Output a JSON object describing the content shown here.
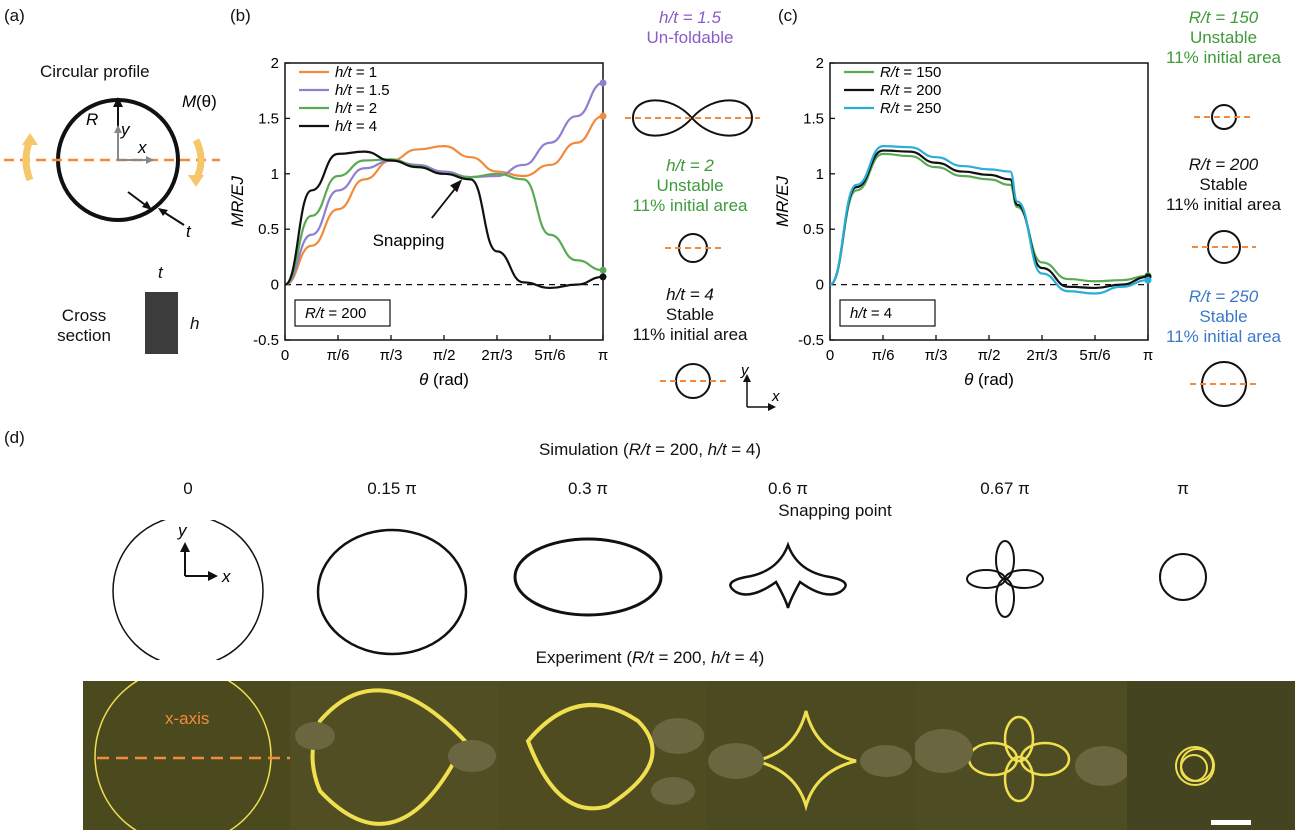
{
  "panel_labels": {
    "a": "(a)",
    "b": "(b)",
    "c": "(c)",
    "d": "(d)"
  },
  "panel_a": {
    "circular_profile": "Circular profile",
    "R": "R",
    "y": "y",
    "x": "x",
    "M": "M",
    "theta": "(θ)",
    "t": "t",
    "cross_section_line1": "Cross",
    "cross_section_line2": "section",
    "cs_t": "t",
    "cs_h": "h"
  },
  "chart_data": [
    {
      "type": "line",
      "panel": "(b)",
      "xlabel": "θ (rad)",
      "ylabel": "MR/EJ",
      "xlim": [
        0,
        3.1416
      ],
      "ylim": [
        -0.5,
        2
      ],
      "x_tick_labels": [
        "0",
        "π/6",
        "π/3",
        "π/2",
        "2π/3",
        "5π/6",
        "π"
      ],
      "y_tick_labels": [
        "-0.5",
        "0",
        "0.5",
        "1",
        "1.5",
        "2"
      ],
      "legend_position": "top-left",
      "inset_label": "R/t = 200",
      "annotation": "Snapping",
      "x": [
        0,
        0.2618,
        0.5236,
        0.7854,
        1.0472,
        1.309,
        1.5708,
        1.8326,
        2.0944,
        2.3562,
        2.618,
        2.8798,
        3.1416
      ],
      "series": [
        {
          "name": "h/t = 1",
          "color": "#f28a3c",
          "values": [
            0,
            0.35,
            0.68,
            0.95,
            1.12,
            1.22,
            1.25,
            1.15,
            1.02,
            0.98,
            1.08,
            1.28,
            1.52
          ]
        },
        {
          "name": "h/t = 1.5",
          "color": "#8f7fd1",
          "values": [
            0,
            0.45,
            0.85,
            1.05,
            1.12,
            1.08,
            1.02,
            0.97,
            0.98,
            1.08,
            1.28,
            1.52,
            1.82
          ]
        },
        {
          "name": "h/t = 2",
          "color": "#5aaa55",
          "values": [
            0,
            0.62,
            0.98,
            1.12,
            1.13,
            1.07,
            1.0,
            0.97,
            1.0,
            0.95,
            0.45,
            0.22,
            0.13
          ]
        },
        {
          "name": "h/t = 4",
          "color": "#111111",
          "values": [
            0,
            0.85,
            1.18,
            1.2,
            1.12,
            1.06,
            1.0,
            0.95,
            0.3,
            0.02,
            -0.03,
            0.0,
            0.07
          ]
        }
      ]
    },
    {
      "type": "line",
      "panel": "(c)",
      "xlabel": "θ (rad)",
      "ylabel": "MR/EJ",
      "xlim": [
        0,
        3.1416
      ],
      "ylim": [
        -0.5,
        2
      ],
      "x_tick_labels": [
        "0",
        "π/6",
        "π/3",
        "π/2",
        "2π/3",
        "5π/6",
        "π"
      ],
      "y_tick_labels": [
        "-0.5",
        "0",
        "0.5",
        "1",
        "1.5",
        "2"
      ],
      "legend_position": "top-left",
      "inset_label": "h/t = 4",
      "x": [
        0,
        0.2618,
        0.5236,
        0.7854,
        1.0472,
        1.309,
        1.5708,
        1.7802,
        1.85,
        2.0944,
        2.3562,
        2.618,
        2.8798,
        3.1416
      ],
      "series": [
        {
          "name": "R/t = 150",
          "color": "#5aaa55",
          "values": [
            0,
            0.85,
            1.18,
            1.16,
            1.06,
            0.98,
            0.95,
            0.9,
            0.7,
            0.2,
            0.05,
            0.03,
            0.04,
            0.08
          ]
        },
        {
          "name": "R/t = 200",
          "color": "#111111",
          "values": [
            0,
            0.88,
            1.21,
            1.2,
            1.1,
            1.02,
            0.99,
            0.95,
            0.72,
            0.15,
            -0.02,
            -0.03,
            0.0,
            0.07
          ]
        },
        {
          "name": "R/t = 250",
          "color": "#2aaed8",
          "values": [
            0,
            0.9,
            1.25,
            1.24,
            1.15,
            1.07,
            1.04,
            1.02,
            0.75,
            0.1,
            -0.06,
            -0.08,
            -0.02,
            0.04
          ]
        }
      ]
    }
  ],
  "panel_b_right": {
    "t1_line1": "h/t = 1.5",
    "t1_line2": "Un-foldable",
    "t2_line1": "h/t = 2",
    "t2_line2": "Unstable",
    "t2_line3": "11% initial area",
    "t3_line1": "h/t = 4",
    "t3_line2": "Stable",
    "t3_line3": "11% initial area",
    "axis_y": "y",
    "axis_x": "x"
  },
  "panel_c_right": {
    "t1_line1": "R/t = 150",
    "t1_line2": "Unstable",
    "t1_line3": "11% initial area",
    "t2_line1": "R/t = 200",
    "t2_line2": "Stable",
    "t2_line3": "11% initial area",
    "t3_line1": "R/t = 250",
    "t3_line2": "Stable",
    "t3_line3": "11% initial area"
  },
  "panel_d": {
    "simulation_title": "Simulation (R/t = 200, h/t = 4)",
    "experiment_title": "Experiment (R/t = 200, h/t = 4)",
    "stage_labels": [
      "0",
      "0.15 π",
      "0.3 π",
      "0.6 π",
      "0.67 π",
      "π"
    ],
    "snapping_point": "Snapping point",
    "axis_y": "y",
    "axis_x": "x",
    "x_axis_label": "x-axis"
  },
  "colors": {
    "orange": "#f28a3c",
    "purple": "#8f7fd1",
    "green": "#3e9a3a",
    "blue": "#3b78c8",
    "photo_bg": "#4a4a1e",
    "ring": "#f0e050"
  }
}
